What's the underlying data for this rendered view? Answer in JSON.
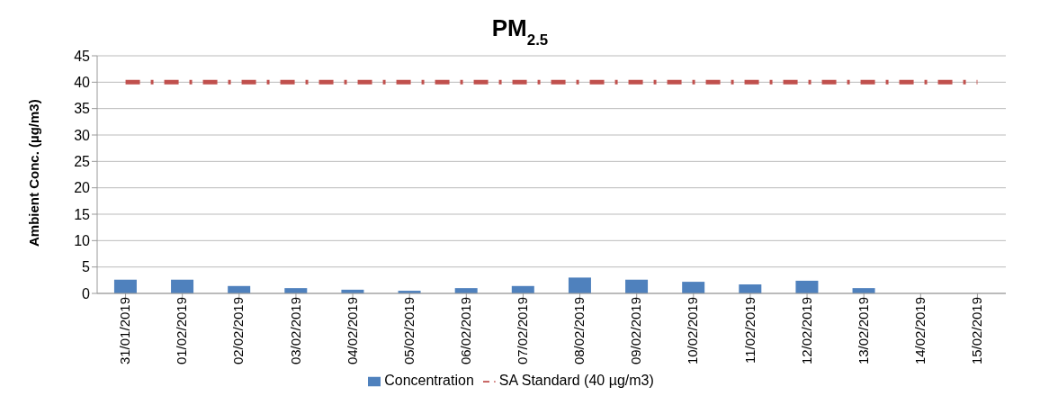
{
  "chart_data": {
    "type": "bar",
    "title": "PM$_{2.5}$",
    "ylabel": "Ambient Conc.  (µg/m3)",
    "categories": [
      "31/01/2019",
      "01/02/2019",
      "02/02/2019",
      "03/02/2019",
      "04/02/2019",
      "05/02/2019",
      "06/02/2019",
      "07/02/2019",
      "08/02/2019",
      "09/02/2019",
      "10/02/2019",
      "11/02/2019",
      "12/02/2019",
      "13/02/2019",
      "14/02/2019",
      "15/02/2019"
    ],
    "series": [
      {
        "name": "Concentration",
        "color": "#4f81bd",
        "values": [
          2.6,
          2.6,
          1.4,
          1.0,
          0.7,
          0.5,
          1.0,
          1.4,
          3.0,
          2.6,
          2.2,
          1.7,
          2.4,
          1.0,
          null,
          null
        ]
      },
      {
        "name": "SA Standard (40 µg/m3)",
        "type": "line",
        "color": "#c0504d",
        "line_style": "dashed",
        "values": [
          40,
          40,
          40,
          40,
          40,
          40,
          40,
          40,
          40,
          40,
          40,
          40,
          40,
          40,
          40,
          40
        ]
      }
    ],
    "ylim": [
      0,
      45
    ],
    "yticks": [
      0,
      5,
      10,
      15,
      20,
      25,
      30,
      35,
      40,
      45
    ],
    "grid": "y",
    "legend": "bottom"
  }
}
